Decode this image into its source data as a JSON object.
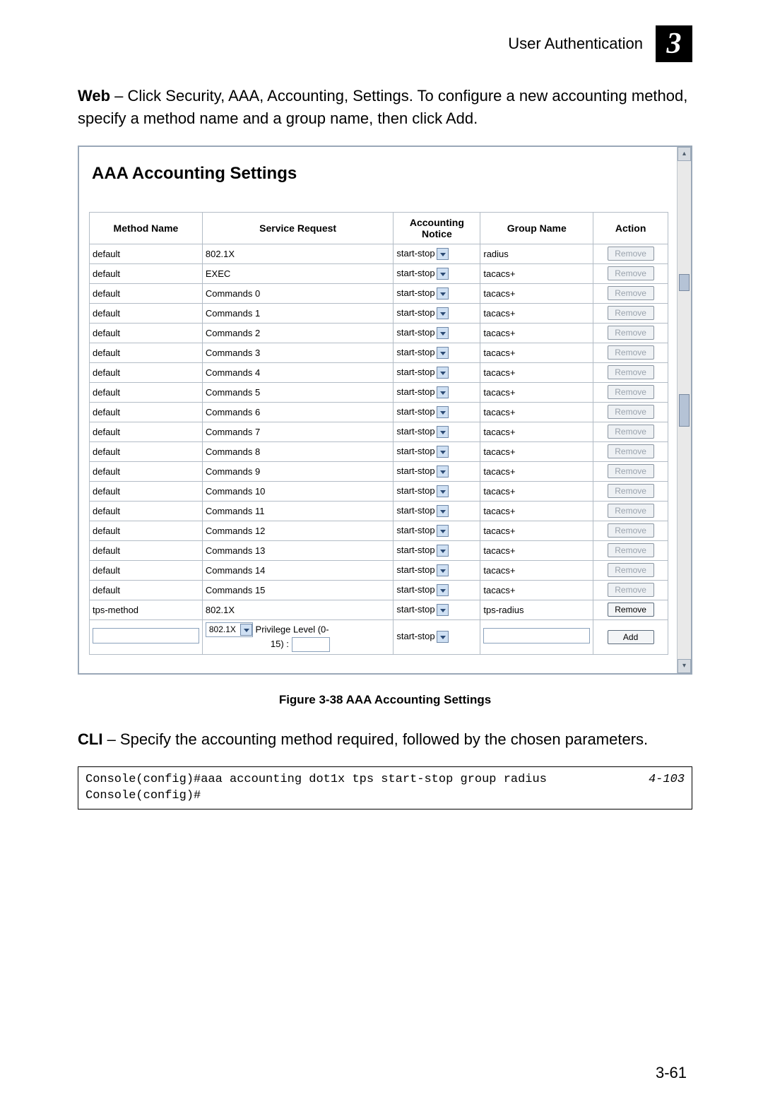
{
  "header": {
    "title": "User Authentication",
    "chapter": "3"
  },
  "intro": {
    "web_label": "Web",
    "web_text": " – Click Security, AAA, Accounting, Settings. To configure a new accounting method, specify a method name and a group name, then click Add."
  },
  "panel": {
    "title": "AAA Accounting Settings",
    "columns": {
      "method": "Method Name",
      "service": "Service Request",
      "notice": "Accounting Notice",
      "group": "Group Name",
      "action": "Action"
    },
    "notice_value": "start-stop",
    "remove_label": "Remove",
    "add_label": "Add",
    "rows": [
      {
        "method": "default",
        "service": "802.1X",
        "group": "radius",
        "enabled": false
      },
      {
        "method": "default",
        "service": "EXEC",
        "group": "tacacs+",
        "enabled": false
      },
      {
        "method": "default",
        "service": "Commands 0",
        "group": "tacacs+",
        "enabled": false
      },
      {
        "method": "default",
        "service": "Commands 1",
        "group": "tacacs+",
        "enabled": false
      },
      {
        "method": "default",
        "service": "Commands 2",
        "group": "tacacs+",
        "enabled": false
      },
      {
        "method": "default",
        "service": "Commands 3",
        "group": "tacacs+",
        "enabled": false
      },
      {
        "method": "default",
        "service": "Commands 4",
        "group": "tacacs+",
        "enabled": false
      },
      {
        "method": "default",
        "service": "Commands 5",
        "group": "tacacs+",
        "enabled": false
      },
      {
        "method": "default",
        "service": "Commands 6",
        "group": "tacacs+",
        "enabled": false
      },
      {
        "method": "default",
        "service": "Commands 7",
        "group": "tacacs+",
        "enabled": false
      },
      {
        "method": "default",
        "service": "Commands 8",
        "group": "tacacs+",
        "enabled": false
      },
      {
        "method": "default",
        "service": "Commands 9",
        "group": "tacacs+",
        "enabled": false
      },
      {
        "method": "default",
        "service": "Commands 10",
        "group": "tacacs+",
        "enabled": false
      },
      {
        "method": "default",
        "service": "Commands 11",
        "group": "tacacs+",
        "enabled": false
      },
      {
        "method": "default",
        "service": "Commands 12",
        "group": "tacacs+",
        "enabled": false
      },
      {
        "method": "default",
        "service": "Commands 13",
        "group": "tacacs+",
        "enabled": false
      },
      {
        "method": "default",
        "service": "Commands 14",
        "group": "tacacs+",
        "enabled": false
      },
      {
        "method": "default",
        "service": "Commands 15",
        "group": "tacacs+",
        "enabled": false
      },
      {
        "method": "tps-method",
        "service": "802.1X",
        "group": "tps-radius",
        "enabled": true
      }
    ],
    "add_row": {
      "service_default": "802.1X",
      "priv_label_a": "Privilege Level (0-",
      "priv_label_b": "15) :"
    }
  },
  "figure_caption": "Figure 3-38  AAA Accounting Settings",
  "cli": {
    "label": "CLI",
    "text": " – Specify the accounting method required, followed by the chosen parameters.",
    "line1": "Console(config)#aaa accounting dot1x tps start-stop group radius",
    "ref": "4-103",
    "line2": "Console(config)#"
  },
  "page_number": "3-61",
  "colors": {
    "border": "#9aa8b8",
    "cell_border": "#b3bcc6",
    "dd_bg": "#cfe0f3",
    "btn_bg": "#eef1f4"
  }
}
